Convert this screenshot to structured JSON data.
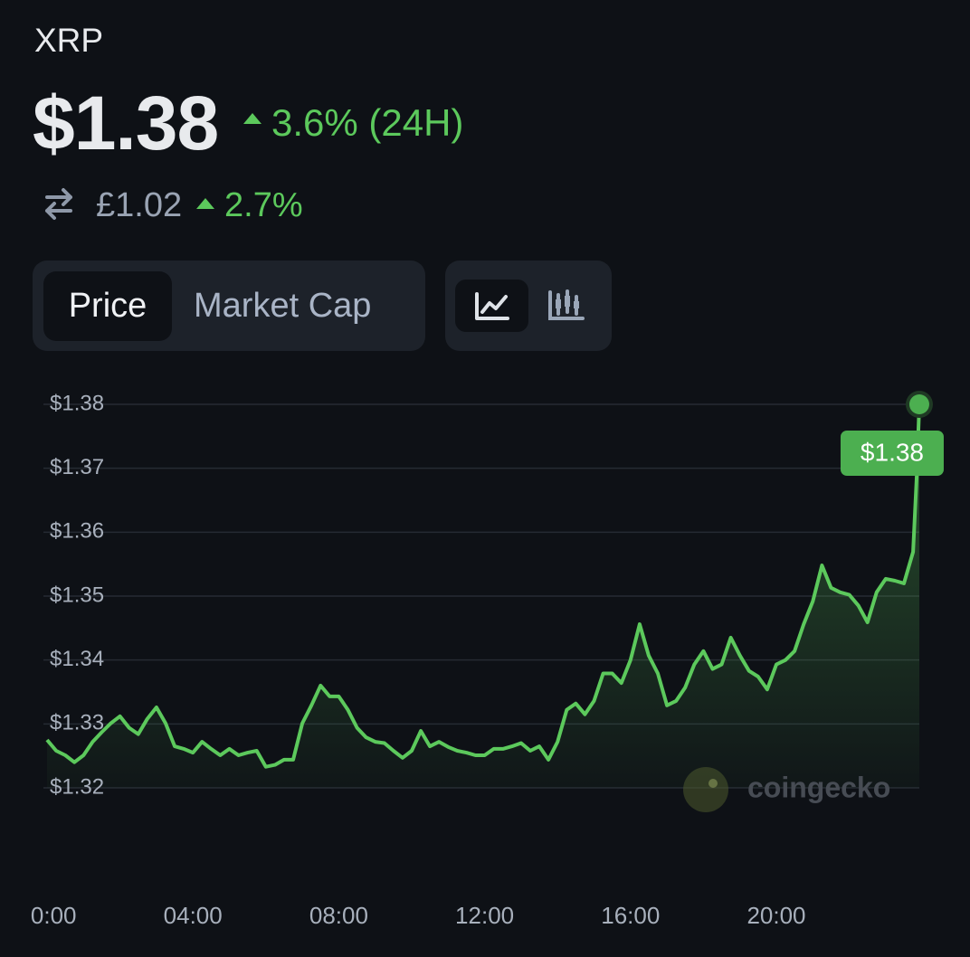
{
  "header": {
    "symbol": "XRP",
    "price": "$1.38",
    "change_24h": "3.6% (24H)",
    "alt_price": "£1.02",
    "alt_change": "2.7%"
  },
  "tabs": {
    "metric": [
      "Price",
      "Market Cap"
    ]
  },
  "watermark": "coingecko",
  "chart_data": {
    "type": "line",
    "x": [
      0,
      0.25,
      0.5,
      0.75,
      1,
      1.25,
      1.5,
      1.75,
      2,
      2.25,
      2.5,
      2.75,
      3,
      3.25,
      3.5,
      3.75,
      4,
      4.25,
      4.5,
      4.75,
      5,
      5.25,
      5.5,
      5.75,
      6,
      6.25,
      6.5,
      6.75,
      7,
      7.25,
      7.5,
      7.75,
      8,
      8.25,
      8.5,
      8.75,
      9,
      9.25,
      9.5,
      9.75,
      10,
      10.25,
      10.5,
      10.75,
      11,
      11.25,
      11.5,
      11.75,
      12,
      12.25,
      12.5,
      12.75,
      13,
      13.25,
      13.5,
      13.75,
      14,
      14.25,
      14.5,
      14.75,
      15,
      15.25,
      15.5,
      15.75,
      16,
      16.25,
      16.5,
      16.75,
      17,
      17.25,
      17.5,
      17.75,
      18,
      18.25,
      18.5,
      18.75,
      19,
      19.25,
      19.5,
      19.75,
      20,
      20.25,
      20.5,
      20.75,
      21,
      21.25,
      21.5,
      21.75,
      22,
      22.25,
      22.5,
      22.75,
      23,
      23.25,
      23.5,
      23.75,
      23.85,
      23.92
    ],
    "values": [
      1.3275,
      1.3258,
      1.3251,
      1.324,
      1.3251,
      1.3272,
      1.3287,
      1.3301,
      1.3312,
      1.3294,
      1.3284,
      1.3308,
      1.3326,
      1.3301,
      1.3265,
      1.3261,
      1.3255,
      1.3272,
      1.3261,
      1.3251,
      1.3261,
      1.3251,
      1.3255,
      1.3258,
      1.3233,
      1.3236,
      1.3244,
      1.3244,
      1.3301,
      1.3329,
      1.336,
      1.3343,
      1.3343,
      1.3322,
      1.3294,
      1.3279,
      1.3272,
      1.327,
      1.3258,
      1.3247,
      1.3258,
      1.3289,
      1.3265,
      1.3272,
      1.3264,
      1.3258,
      1.3255,
      1.3251,
      1.3251,
      1.3261,
      1.3261,
      1.3265,
      1.327,
      1.3258,
      1.3265,
      1.3244,
      1.3272,
      1.3322,
      1.3332,
      1.3315,
      1.3336,
      1.3379,
      1.3379,
      1.3364,
      1.34,
      1.3456,
      1.3407,
      1.3379,
      1.3329,
      1.3336,
      1.3357,
      1.3393,
      1.3414,
      1.3386,
      1.3393,
      1.3435,
      1.3407,
      1.3383,
      1.3374,
      1.3354,
      1.3393,
      1.34,
      1.3414,
      1.3456,
      1.3492,
      1.3548,
      1.3513,
      1.3506,
      1.3502,
      1.3485,
      1.3459,
      1.3506,
      1.3527,
      1.3524,
      1.352,
      1.3569,
      1.369,
      1.38
    ],
    "color": "#5cc95c",
    "xlim": [
      0,
      24
    ],
    "xticks": [
      {
        "value": 0,
        "label": "00:00"
      },
      {
        "value": 4,
        "label": "04:00"
      },
      {
        "value": 8,
        "label": "08:00"
      },
      {
        "value": 12,
        "label": "12:00"
      },
      {
        "value": 16,
        "label": "16:00"
      },
      {
        "value": 20,
        "label": "20:00"
      }
    ],
    "ylim": [
      1.32,
      1.38
    ],
    "yticks": [
      {
        "value": 1.32,
        "label": "$1.32"
      },
      {
        "value": 1.33,
        "label": "$1.33"
      },
      {
        "value": 1.34,
        "label": "$1.34"
      },
      {
        "value": 1.35,
        "label": "$1.35"
      },
      {
        "value": 1.36,
        "label": "$1.36"
      },
      {
        "value": 1.37,
        "label": "$1.37"
      },
      {
        "value": 1.38,
        "label": "$1.38"
      }
    ],
    "grid": true,
    "annotations": [
      {
        "x": 23.92,
        "y": 1.38,
        "label": "$1.38"
      }
    ]
  }
}
